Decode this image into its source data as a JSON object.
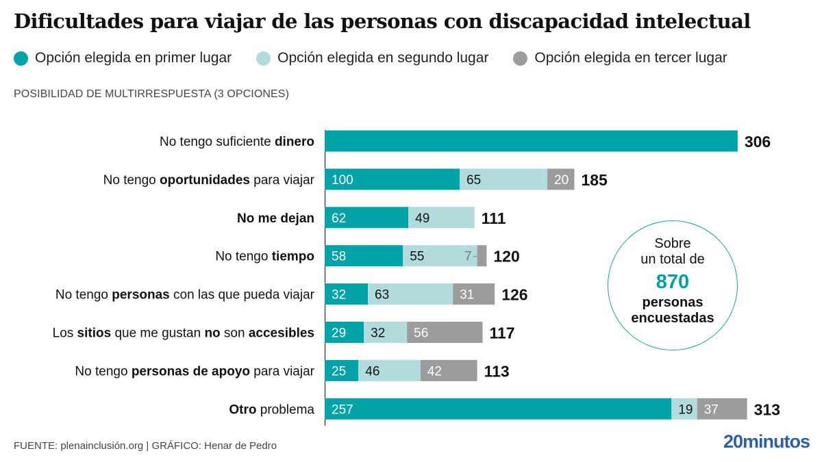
{
  "title": "Dificultades para viajar de las personas con discapacidad intelectual",
  "subtitle": "POSIBILIDAD DE MULTIRRESPUESTA (3 OPCIONES)",
  "legend": [
    {
      "label": "Opción elegida en primer lugar",
      "color": "#00a3a8"
    },
    {
      "label": "Opción elegida en segundo lugar",
      "color": "#b1dcdb"
    },
    {
      "label": "Opción elegida en tercer lugar",
      "color": "#9c9c9c"
    }
  ],
  "callout": {
    "line1": "Sobre",
    "line2": "un total de",
    "number": "870",
    "line3": "personas",
    "line4": "encuestadas"
  },
  "footer": "FUENTE: plenainclusión.org  |  GRÁFICO: Henar de Pedro",
  "logo": "20minutos",
  "chart_data": {
    "type": "bar",
    "orientation": "horizontal",
    "stacked": true,
    "title": "Dificultades para viajar de las personas con discapacidad intelectual",
    "subtitle": "POSIBILIDAD DE MULTIRRESPUESTA (3 OPCIONES)",
    "xlabel": "",
    "ylabel": "",
    "grid": false,
    "legend_position": "top",
    "categories": [
      [
        {
          "t": "No tengo suficiente ",
          "b": false
        },
        {
          "t": "dinero",
          "b": true
        }
      ],
      [
        {
          "t": "No tengo ",
          "b": false
        },
        {
          "t": "oportunidades",
          "b": true
        },
        {
          "t": " para viajar",
          "b": false
        }
      ],
      [
        {
          "t": "No me dejan",
          "b": true
        }
      ],
      [
        {
          "t": "No tengo ",
          "b": false
        },
        {
          "t": "tiempo",
          "b": true
        }
      ],
      [
        {
          "t": "No tengo ",
          "b": false
        },
        {
          "t": "personas",
          "b": true
        },
        {
          "t": " con las que pueda viajar",
          "b": false
        }
      ],
      [
        {
          "t": "Los ",
          "b": false
        },
        {
          "t": "sitios",
          "b": true
        },
        {
          "t": " que me gustan ",
          "b": false
        },
        {
          "t": "no",
          "b": true
        },
        {
          "t": " son ",
          "b": false
        },
        {
          "t": "accesibles",
          "b": true
        }
      ],
      [
        {
          "t": "No tengo ",
          "b": false
        },
        {
          "t": "personas de apoyo",
          "b": true
        },
        {
          "t": " para viajar",
          "b": false
        }
      ],
      [
        {
          "t": "Otro",
          "b": true
        },
        {
          "t": " problema",
          "b": false
        }
      ]
    ],
    "series": [
      {
        "name": "Opción elegida en primer lugar",
        "values": [
          306,
          100,
          62,
          58,
          32,
          29,
          25,
          257
        ]
      },
      {
        "name": "Opción elegida en segundo lugar",
        "values": [
          0,
          65,
          49,
          55,
          63,
          32,
          46,
          19
        ]
      },
      {
        "name": "Opción elegida en tercer lugar",
        "values": [
          0,
          20,
          0,
          7,
          31,
          56,
          42,
          37
        ]
      }
    ],
    "totals": [
      306,
      185,
      111,
      120,
      126,
      117,
      113,
      313
    ],
    "segment_labels_shown": [
      [
        false,
        false,
        false
      ],
      [
        true,
        true,
        true
      ],
      [
        true,
        true,
        false
      ],
      [
        true,
        true,
        true
      ],
      [
        true,
        true,
        true
      ],
      [
        true,
        true,
        true
      ],
      [
        true,
        true,
        true
      ],
      [
        true,
        true,
        true
      ]
    ],
    "xlim": [
      0,
      313
    ]
  }
}
